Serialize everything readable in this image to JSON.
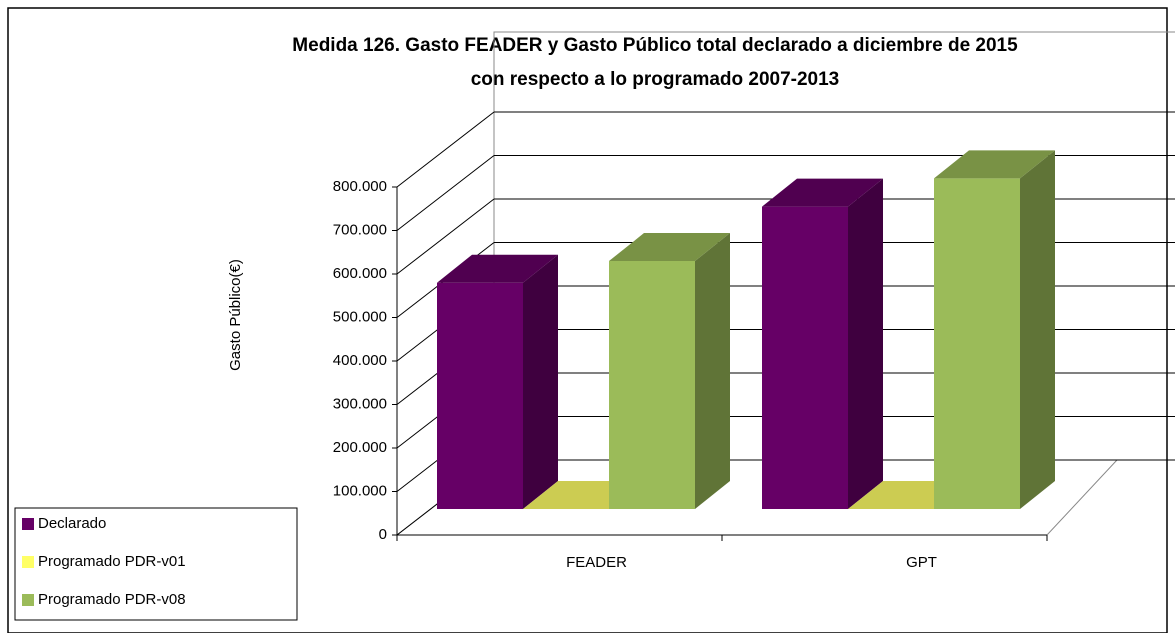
{
  "chart_data": {
    "type": "bar3d",
    "title": [
      "Medida 126. Gasto FEADER y Gasto Público total  declarado  a diciembre de  2015",
      "con respecto a lo programado 2007-2013"
    ],
    "y_label": "Gasto Público(€)",
    "categories": [
      "FEADER",
      "GPT"
    ],
    "series": [
      {
        "name": "Declarado",
        "color": "#660066",
        "values": [
          520000,
          695000
        ]
      },
      {
        "name": "Programado PDR-v01",
        "color": "#ffff66",
        "values": [
          0,
          0
        ]
      },
      {
        "name": "Programado PDR-v08",
        "color": "#9bbb59",
        "values": [
          570000,
          760000
        ]
      }
    ],
    "ylim": [
      0,
      800000
    ],
    "yticks": [
      0,
      {
        "value": 100000,
        "label": "100.000"
      },
      {
        "value": 200000,
        "label": "200.000"
      },
      {
        "value": 300000,
        "label": "300.000"
      },
      {
        "value": 400000,
        "label": "400.000"
      },
      {
        "value": 500000,
        "label": "500.000"
      },
      {
        "value": 600000,
        "label": "600.000"
      },
      {
        "value": 700000,
        "label": "700.000"
      },
      {
        "value": 800000,
        "label": "800.000"
      }
    ],
    "grid": true,
    "legend": "bottom-left"
  }
}
